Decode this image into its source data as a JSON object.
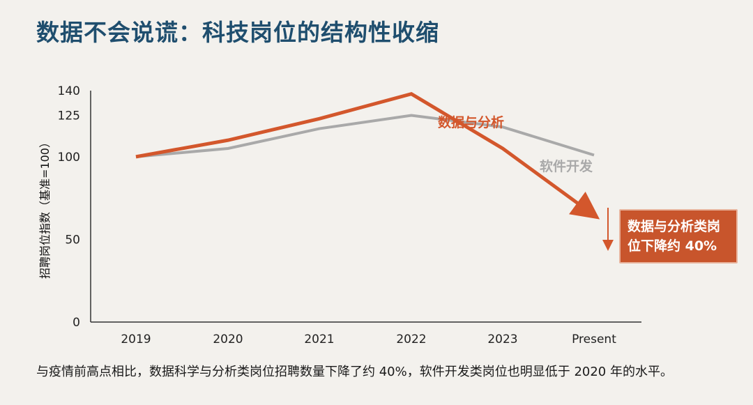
{
  "title": "数据不会说谎：科技岗位的结构性收缩",
  "caption": "与疫情前高点相比，数据科学与分析类岗位招聘数量下降了约 40%，软件开发类岗位也明显低于 2020 年的水平。",
  "callout": {
    "line1": "数据与分析类岗",
    "line2": "位下降约 40%"
  },
  "colors": {
    "analytics": "#d3572c",
    "software": "#a9a9a9",
    "axis": "#333333",
    "callout_bg": "#c8552c"
  },
  "chart_data": {
    "type": "line",
    "title": "数据不会说谎：科技岗位的结构性收缩",
    "ylabel": "招聘岗位指数（基准=100）",
    "xlabel": "",
    "categories": [
      "2019",
      "2020",
      "2021",
      "2022",
      "2023",
      "Present"
    ],
    "y_ticks": [
      0,
      50,
      100,
      125,
      140
    ],
    "ylim": [
      0,
      140
    ],
    "grid": false,
    "series": [
      {
        "name": "数据与分析",
        "values": [
          100,
          110,
          123,
          138,
          105,
          65
        ]
      },
      {
        "name": "软件开发",
        "values": [
          100,
          105,
          117,
          125,
          118,
          101
        ]
      }
    ]
  }
}
